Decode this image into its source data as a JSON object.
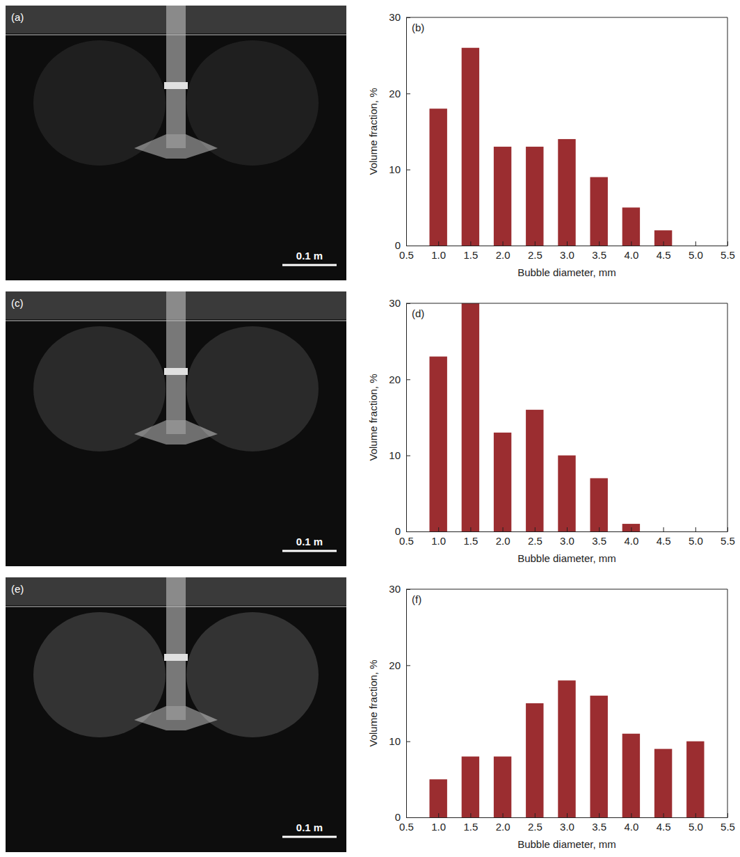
{
  "images": [
    {
      "label": "(a)",
      "scale_bar": "0.1 m"
    },
    {
      "label": "(c)",
      "scale_bar": "0.1 m"
    },
    {
      "label": "(e)",
      "scale_bar": "0.1 m"
    }
  ],
  "chart_data": [
    {
      "type": "bar",
      "title": "(b)",
      "x_label": "Bubble diameter, mm",
      "y_label": "Volume fraction, %",
      "x": [
        1,
        1.5,
        2,
        2.5,
        3,
        3.5,
        4,
        4.5,
        5
      ],
      "values": [
        18,
        26,
        13,
        13,
        14,
        9,
        5,
        2,
        0
      ],
      "color": "#9b2d30",
      "xlim": [
        0.5,
        5.5
      ],
      "xticks": [
        0.5,
        {
          "value": 1,
          "label": "1.0"
        },
        1.5,
        {
          "value": 2,
          "label": "2.0"
        },
        2.5,
        {
          "value": 3,
          "label": "3.0"
        },
        3.5,
        {
          "value": 4,
          "label": "4.0"
        },
        4.5,
        {
          "value": 5,
          "label": "5.0"
        },
        5.5
      ],
      "ylim": [
        0,
        30
      ],
      "yticks": [
        0,
        10,
        20,
        30
      ],
      "grid": false
    },
    {
      "type": "bar",
      "title": "(d)",
      "x_label": "Bubble diameter, mm",
      "y_label": "Volume fraction, %",
      "x": [
        1,
        1.5,
        2,
        2.5,
        3,
        3.5,
        4,
        4.5,
        5
      ],
      "values": [
        23,
        30,
        13,
        16,
        10,
        7,
        1,
        0,
        0
      ],
      "color": "#9b2d30",
      "xlim": [
        0.5,
        5.5
      ],
      "xticks": [
        0.5,
        {
          "value": 1,
          "label": "1.0"
        },
        1.5,
        {
          "value": 2,
          "label": "2.0"
        },
        2.5,
        {
          "value": 3,
          "label": "3.0"
        },
        3.5,
        {
          "value": 4,
          "label": "4.0"
        },
        4.5,
        {
          "value": 5,
          "label": "5.0"
        },
        5.5
      ],
      "ylim": [
        0,
        30
      ],
      "yticks": [
        0,
        10,
        20,
        30
      ],
      "grid": false
    },
    {
      "type": "bar",
      "title": "(f)",
      "x_label": "Bubble diameter, mm",
      "y_label": "Volume fraction, %",
      "x": [
        1,
        1.5,
        2,
        2.5,
        3,
        3.5,
        4,
        4.5,
        5
      ],
      "values": [
        5,
        8,
        8,
        15,
        18,
        16,
        11,
        9,
        10
      ],
      "color": "#9b2d30",
      "xlim": [
        0.5,
        5.5
      ],
      "xticks": [
        0.5,
        {
          "value": 1,
          "label": "1.0"
        },
        1.5,
        {
          "value": 2,
          "label": "2.0"
        },
        2.5,
        {
          "value": 3,
          "label": "3.0"
        },
        3.5,
        {
          "value": 4,
          "label": "4.0"
        },
        4.5,
        {
          "value": 5,
          "label": "5.0"
        },
        5.5
      ],
      "ylim": [
        0,
        30
      ],
      "yticks": [
        0,
        10,
        20,
        30
      ],
      "grid": false
    }
  ]
}
